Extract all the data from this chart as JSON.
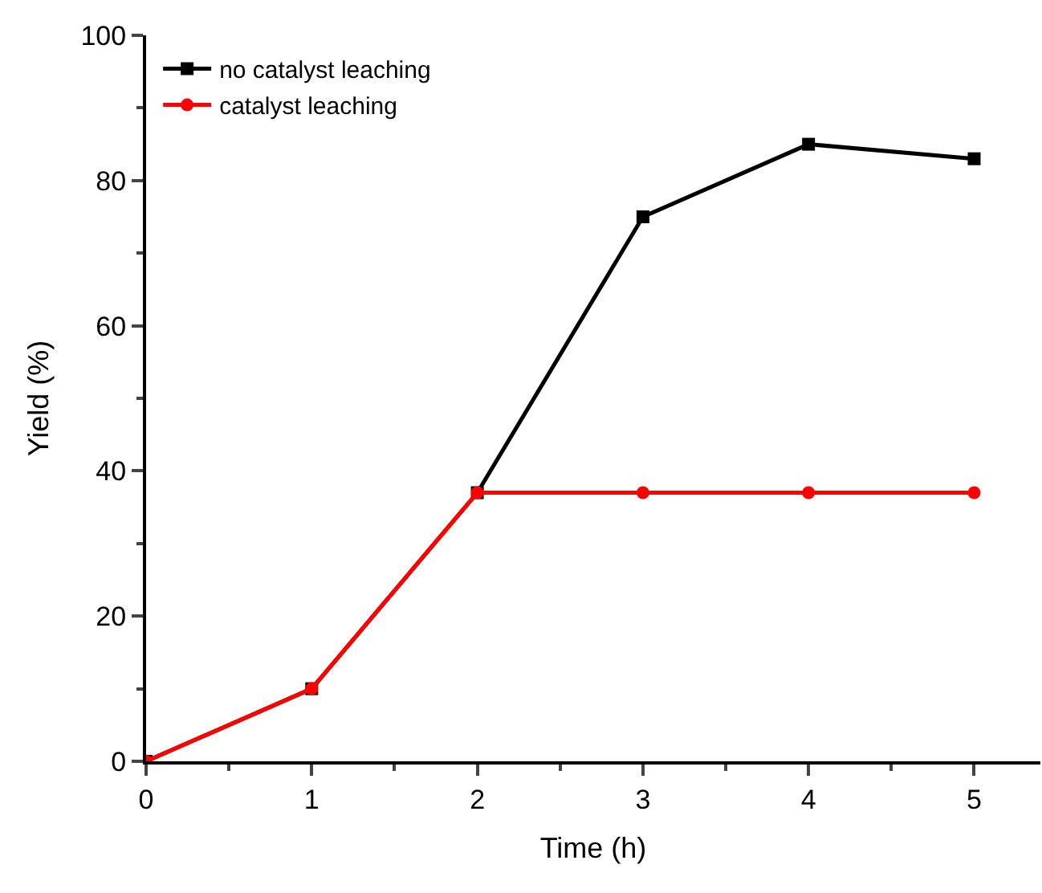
{
  "chart_data": {
    "type": "line",
    "xlabel": "Time (h)",
    "ylabel": "Yield (%)",
    "x": [
      0,
      1,
      2,
      3,
      4,
      5
    ],
    "series": [
      {
        "name": "no catalyst leaching",
        "color": "#000000",
        "marker": "square",
        "values": [
          0,
          10,
          37,
          75,
          85,
          83
        ]
      },
      {
        "name": "catalyst leaching",
        "color": "#ff0000",
        "marker": "circle",
        "values": [
          0,
          10,
          37,
          37,
          37,
          37
        ]
      }
    ],
    "xlim": [
      0,
      5.4
    ],
    "xticks": [
      0,
      1,
      2,
      3,
      4,
      5
    ],
    "ylim": [
      0,
      100
    ],
    "yticks": [
      0,
      20,
      40,
      60,
      80,
      100
    ],
    "legend": "top left",
    "line_style": "solid"
  }
}
